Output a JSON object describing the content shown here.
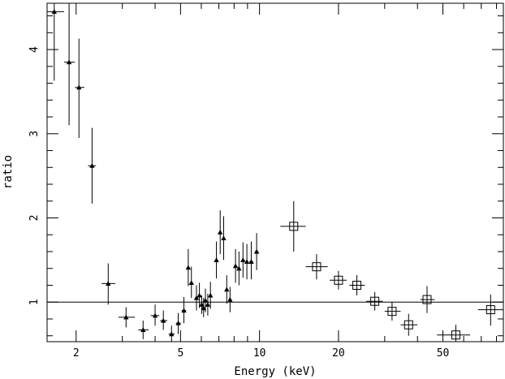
{
  "chart_data": {
    "type": "scatter",
    "xlabel": "Energy (keV)",
    "ylabel": "ratio",
    "xscale": "log",
    "xlim": [
      1.55,
      85
    ],
    "ylim": [
      0.53,
      4.55
    ],
    "x_ticks": [
      2,
      5,
      10,
      20,
      50
    ],
    "x_tick_labels": [
      "2",
      "5",
      "10",
      "20",
      "50"
    ],
    "y_ticks": [
      1,
      2,
      3,
      4
    ],
    "y_tick_labels": [
      "1",
      "2",
      "3",
      "4"
    ],
    "reference_line": 1.0,
    "grid": false,
    "series": [
      {
        "marker": "triangle",
        "points": [
          {
            "x": 1.65,
            "y": 4.45,
            "xerr": [
              1.55,
              1.8
            ],
            "yerr": [
              3.63,
              4.55
            ]
          },
          {
            "x": 1.88,
            "y": 3.85,
            "xerr": [
              1.8,
              1.98
            ],
            "yerr": [
              3.1,
              4.55
            ]
          },
          {
            "x": 2.05,
            "y": 3.55,
            "xerr": [
              1.98,
              2.15
            ],
            "yerr": [
              2.95,
              4.13
            ]
          },
          {
            "x": 2.3,
            "y": 2.62,
            "xerr": [
              2.22,
              2.38
            ],
            "yerr": [
              2.17,
              3.07
            ]
          },
          {
            "x": 2.65,
            "y": 1.22,
            "xerr": [
              2.5,
              2.82
            ],
            "yerr": [
              0.97,
              1.46
            ]
          },
          {
            "x": 3.1,
            "y": 0.82,
            "xerr": [
              2.9,
              3.35
            ],
            "yerr": [
              0.7,
              0.94
            ]
          },
          {
            "x": 3.6,
            "y": 0.67,
            "xerr": [
              3.45,
              3.78
            ],
            "yerr": [
              0.56,
              0.78
            ]
          },
          {
            "x": 4.0,
            "y": 0.84,
            "xerr": [
              3.85,
              4.15
            ],
            "yerr": [
              0.72,
              0.97
            ]
          },
          {
            "x": 4.3,
            "y": 0.78,
            "xerr": [
              4.18,
              4.45
            ],
            "yerr": [
              0.67,
              0.9
            ]
          },
          {
            "x": 4.62,
            "y": 0.62,
            "xerr": [
              4.5,
              4.75
            ],
            "yerr": [
              0.53,
              0.72
            ]
          },
          {
            "x": 4.9,
            "y": 0.75,
            "xerr": [
              4.8,
              5.02
            ],
            "yerr": [
              0.62,
              0.87
            ]
          },
          {
            "x": 5.15,
            "y": 0.9,
            "xerr": [
              5.05,
              5.25
            ],
            "yerr": [
              0.75,
              1.06
            ]
          },
          {
            "x": 5.35,
            "y": 1.41,
            "xerr": [
              5.3,
              5.42
            ],
            "yerr": [
              1.19,
              1.63
            ]
          },
          {
            "x": 5.5,
            "y": 1.23,
            "xerr": [
              5.45,
              5.57
            ],
            "yerr": [
              1.05,
              1.42
            ]
          },
          {
            "x": 5.75,
            "y": 1.05,
            "xerr": [
              5.67,
              5.82
            ],
            "yerr": [
              0.9,
              1.2
            ]
          },
          {
            "x": 5.9,
            "y": 1.08,
            "xerr": [
              5.85,
              5.95
            ],
            "yerr": [
              0.93,
              1.23
            ]
          },
          {
            "x": 6.02,
            "y": 0.97,
            "xerr": [
              5.97,
              6.07
            ],
            "yerr": [
              0.86,
              1.08
            ]
          },
          {
            "x": 6.12,
            "y": 0.93,
            "xerr": [
              6.08,
              6.17
            ],
            "yerr": [
              0.82,
              1.05
            ]
          },
          {
            "x": 6.22,
            "y": 1.02,
            "xerr": [
              6.18,
              6.27
            ],
            "yerr": [
              0.88,
              1.16
            ]
          },
          {
            "x": 6.35,
            "y": 0.97,
            "xerr": [
              6.3,
              6.42
            ],
            "yerr": [
              0.84,
              1.1
            ]
          },
          {
            "x": 6.5,
            "y": 1.08,
            "xerr": [
              6.45,
              6.57
            ],
            "yerr": [
              0.92,
              1.24
            ]
          },
          {
            "x": 6.85,
            "y": 1.5,
            "xerr": [
              6.78,
              6.92
            ],
            "yerr": [
              1.28,
              1.72
            ]
          },
          {
            "x": 7.08,
            "y": 1.83,
            "xerr": [
              7.0,
              7.15
            ],
            "yerr": [
              1.57,
              2.09
            ]
          },
          {
            "x": 7.3,
            "y": 1.76,
            "xerr": [
              7.22,
              7.38
            ],
            "yerr": [
              1.5,
              2.02
            ]
          },
          {
            "x": 7.5,
            "y": 1.15,
            "xerr": [
              7.42,
              7.58
            ],
            "yerr": [
              0.98,
              1.32
            ]
          },
          {
            "x": 7.72,
            "y": 1.03,
            "xerr": [
              7.62,
              7.82
            ],
            "yerr": [
              0.88,
              1.18
            ]
          },
          {
            "x": 8.1,
            "y": 1.43,
            "xerr": [
              8.0,
              8.2
            ],
            "yerr": [
              1.23,
              1.63
            ]
          },
          {
            "x": 8.35,
            "y": 1.4,
            "xerr": [
              8.25,
              8.45
            ],
            "yerr": [
              1.2,
              1.6
            ]
          },
          {
            "x": 8.65,
            "y": 1.5,
            "xerr": [
              8.55,
              8.75
            ],
            "yerr": [
              1.29,
              1.71
            ]
          },
          {
            "x": 8.95,
            "y": 1.48,
            "xerr": [
              8.85,
              9.05
            ],
            "yerr": [
              1.27,
              1.69
            ]
          },
          {
            "x": 9.3,
            "y": 1.48,
            "xerr": [
              9.15,
              9.45
            ],
            "yerr": [
              1.27,
              1.72
            ]
          },
          {
            "x": 9.75,
            "y": 1.6,
            "xerr": [
              9.6,
              9.9
            ],
            "yerr": [
              1.38,
              1.82
            ]
          }
        ]
      },
      {
        "marker": "square",
        "points": [
          {
            "x": 13.5,
            "y": 1.9,
            "xerr": [
              12.0,
              15.0
            ],
            "yerr": [
              1.6,
              2.2
            ]
          },
          {
            "x": 16.5,
            "y": 1.42,
            "xerr": [
              15.0,
              18.2
            ],
            "yerr": [
              1.27,
              1.57
            ]
          },
          {
            "x": 20.0,
            "y": 1.26,
            "xerr": [
              18.5,
              21.5
            ],
            "yerr": [
              1.15,
              1.37
            ]
          },
          {
            "x": 23.5,
            "y": 1.2,
            "xerr": [
              22.0,
              25.2
            ],
            "yerr": [
              1.08,
              1.32
            ]
          },
          {
            "x": 27.5,
            "y": 1.01,
            "xerr": [
              25.5,
              29.5
            ],
            "yerr": [
              0.9,
              1.12
            ]
          },
          {
            "x": 32.0,
            "y": 0.89,
            "xerr": [
              30.0,
              34.5
            ],
            "yerr": [
              0.78,
              1.0
            ]
          },
          {
            "x": 37.0,
            "y": 0.73,
            "xerr": [
              34.5,
              40.0
            ],
            "yerr": [
              0.6,
              0.86
            ]
          },
          {
            "x": 43.5,
            "y": 1.03,
            "xerr": [
              41.0,
              46.5
            ],
            "yerr": [
              0.87,
              1.19
            ]
          },
          {
            "x": 56.0,
            "y": 0.61,
            "xerr": [
              47.5,
              63.5
            ],
            "yerr": [
              0.5,
              0.73
            ]
          },
          {
            "x": 76.0,
            "y": 0.91,
            "xerr": [
              68.0,
              85.0
            ],
            "yerr": [
              0.72,
              1.09
            ]
          }
        ]
      }
    ]
  }
}
